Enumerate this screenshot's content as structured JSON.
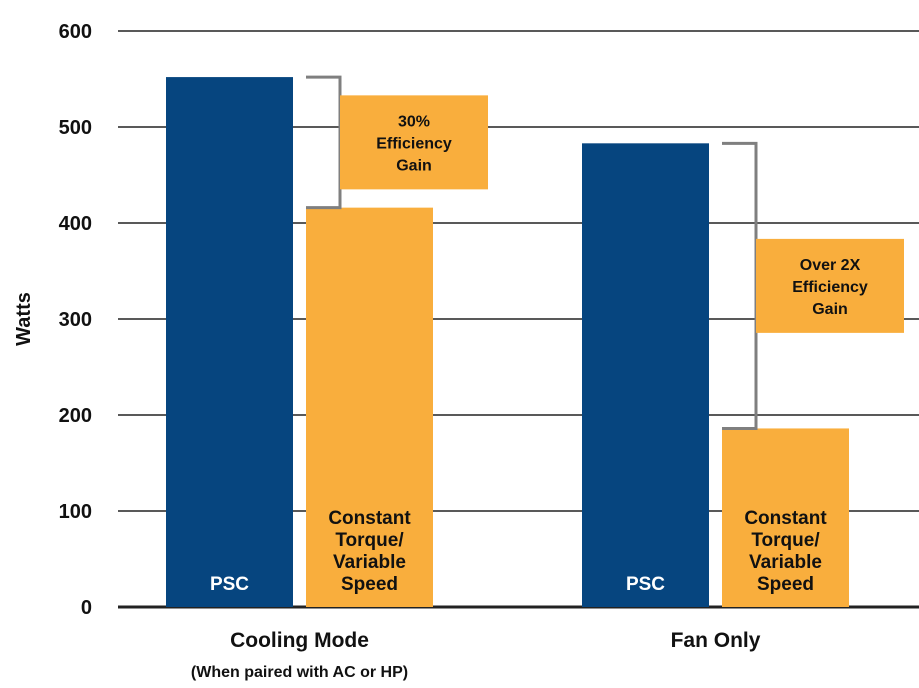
{
  "chart_data": {
    "type": "bar",
    "ylabel": "Watts",
    "ylim": [
      0,
      600
    ],
    "yticks": [
      "0",
      "100",
      "200",
      "300",
      "400",
      "500",
      "600"
    ],
    "grid": true,
    "categories": [
      {
        "label": "Cooling Mode",
        "sublabel": "(When paired with AC or HP)"
      },
      {
        "label": "Fan Only",
        "sublabel": ""
      }
    ],
    "series": [
      {
        "label_lines": [
          "PSC"
        ],
        "values": [
          552,
          483
        ],
        "color": "#06457f"
      },
      {
        "label_lines": [
          "Constant",
          "Torque/",
          "Variable",
          "Speed"
        ],
        "values": [
          416,
          186
        ],
        "color": "#f9ae3d"
      }
    ],
    "annotations": [
      {
        "category": 0,
        "lines": [
          "30%",
          "Efficiency",
          "Gain"
        ]
      },
      {
        "category": 1,
        "lines": [
          "Over 2X",
          "Efficiency",
          "Gain"
        ]
      }
    ],
    "colors": {
      "psc": "#06457f",
      "ct": "#f9ae3d",
      "bracket": "#7f7f7f",
      "grid": "#222222"
    }
  }
}
